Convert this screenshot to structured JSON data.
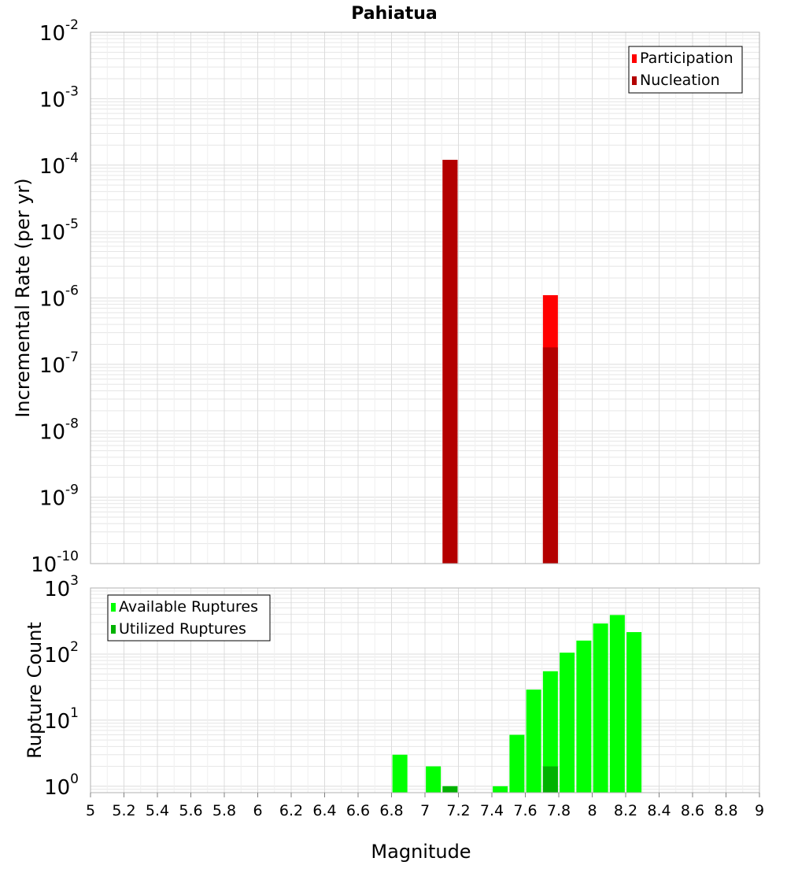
{
  "title": "Pahiatua",
  "colors": {
    "participation": "#ff0000",
    "nucleation": "#b30000",
    "available": "#00ff00",
    "utilized": "#00b200",
    "grid": "#e6e6e6",
    "frame": "#b0b0b0"
  },
  "chart_data": [
    {
      "type": "bar",
      "id": "rate",
      "ylabel": "Incremental Rate (per yr)",
      "yscale": "log",
      "ylim": [
        1e-10,
        0.01
      ],
      "y_tick_exponents": [
        -10,
        -9,
        -8,
        -7,
        -6,
        -5,
        -4,
        -3,
        -2
      ],
      "xlim": [
        5,
        9
      ],
      "bin_width": 0.1,
      "legend": {
        "placement": "top-right"
      },
      "series": [
        {
          "name": "Participation",
          "color_key": "participation",
          "points": [
            {
              "x": 7.1,
              "y": 0.00012
            },
            {
              "x": 7.7,
              "y": 1.1e-06
            }
          ]
        },
        {
          "name": "Nucleation",
          "color_key": "nucleation",
          "points": [
            {
              "x": 7.1,
              "y": 0.00012
            },
            {
              "x": 7.7,
              "y": 1.8e-07
            }
          ]
        }
      ]
    },
    {
      "type": "bar",
      "id": "count",
      "ylabel": "Rupture Count",
      "xlabel": "Magnitude",
      "yscale": "log",
      "ylim": [
        0.8,
        1000
      ],
      "y_tick_exponents": [
        0,
        1,
        2,
        3
      ],
      "xlim": [
        5,
        9
      ],
      "x_ticks": [
        "5",
        "5.2",
        "5.4",
        "5.6",
        "5.8",
        "6",
        "6.2",
        "6.4",
        "6.6",
        "6.8",
        "7",
        "7.2",
        "7.4",
        "7.6",
        "7.8",
        "8",
        "8.2",
        "8.4",
        "8.6",
        "8.8",
        "9"
      ],
      "bin_width": 0.1,
      "legend": {
        "placement": "top-left"
      },
      "series": [
        {
          "name": "Available Ruptures",
          "color_key": "available",
          "points": [
            {
              "x": 6.8,
              "y": 3
            },
            {
              "x": 7.0,
              "y": 2
            },
            {
              "x": 7.1,
              "y": 1
            },
            {
              "x": 7.4,
              "y": 1
            },
            {
              "x": 7.5,
              "y": 6
            },
            {
              "x": 7.6,
              "y": 29
            },
            {
              "x": 7.7,
              "y": 55
            },
            {
              "x": 7.8,
              "y": 105
            },
            {
              "x": 7.9,
              "y": 160
            },
            {
              "x": 8.0,
              "y": 290
            },
            {
              "x": 8.1,
              "y": 390
            },
            {
              "x": 8.2,
              "y": 215
            }
          ]
        },
        {
          "name": "Utilized Ruptures",
          "color_key": "utilized",
          "points": [
            {
              "x": 7.1,
              "y": 1
            },
            {
              "x": 7.7,
              "y": 2
            }
          ]
        }
      ]
    }
  ]
}
